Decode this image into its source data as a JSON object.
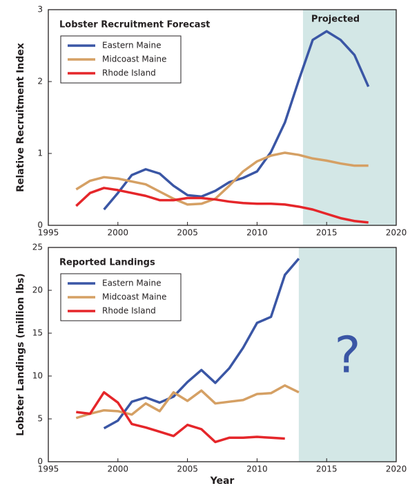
{
  "chart_data": [
    {
      "type": "line",
      "title": "Lobster Recruitment Forecast",
      "ylabel": "Relative Recruitment Index",
      "annotation": "Projected",
      "shaded_xrange": [
        2013.3,
        2020
      ],
      "shade_color": "#d3e7e6",
      "x": [
        1997,
        1998,
        1999,
        2000,
        2001,
        2002,
        2003,
        2004,
        2005,
        2006,
        2007,
        2008,
        2009,
        2010,
        2011,
        2012,
        2013,
        2014,
        2015,
        2016,
        2017,
        2018
      ],
      "series": [
        {
          "name": "Eastern Maine",
          "color": "#3a56a5",
          "values": [
            null,
            null,
            0.22,
            0.45,
            0.7,
            0.78,
            0.72,
            0.55,
            0.42,
            0.4,
            0.48,
            0.6,
            0.66,
            0.75,
            1.02,
            1.43,
            2.02,
            2.58,
            2.7,
            2.58,
            2.37,
            1.93
          ]
        },
        {
          "name": "Midcoast Maine",
          "color": "#d5a064",
          "values": [
            0.5,
            0.62,
            0.67,
            0.65,
            0.61,
            0.57,
            0.47,
            0.37,
            0.29,
            0.3,
            0.37,
            0.55,
            0.75,
            0.89,
            0.97,
            1.01,
            0.98,
            0.93,
            0.9,
            0.86,
            0.83,
            0.83
          ]
        },
        {
          "name": "Rhode Island",
          "color": "#e5262a",
          "values": [
            0.27,
            0.45,
            0.52,
            0.49,
            0.45,
            0.41,
            0.35,
            0.35,
            0.38,
            0.38,
            0.36,
            0.33,
            0.31,
            0.3,
            0.3,
            0.29,
            0.26,
            0.22,
            0.16,
            0.1,
            0.06,
            0.04
          ]
        }
      ],
      "xlim": [
        1995,
        2020
      ],
      "xticks": [
        1995,
        2000,
        2005,
        2010,
        2015,
        2020
      ],
      "ylim": [
        0,
        3
      ],
      "yticks": [
        0,
        1,
        2,
        3
      ]
    },
    {
      "type": "line",
      "title": "Reported Landings",
      "ylabel": "Lobster Landings (million lbs)",
      "xlabel": "Year",
      "annotation": "?",
      "shaded_xrange": [
        2013,
        2020
      ],
      "shade_color": "#d3e7e6",
      "x": [
        1997,
        1998,
        1999,
        2000,
        2001,
        2002,
        2003,
        2004,
        2005,
        2006,
        2007,
        2008,
        2009,
        2010,
        2011,
        2012,
        2013
      ],
      "series": [
        {
          "name": "Eastern Maine",
          "color": "#3a56a5",
          "values": [
            null,
            null,
            3.9,
            4.8,
            7.0,
            7.5,
            6.9,
            7.6,
            9.3,
            10.7,
            9.2,
            10.9,
            13.3,
            16.2,
            16.9,
            21.8,
            23.7
          ]
        },
        {
          "name": "Midcoast Maine",
          "color": "#d5a064",
          "values": [
            5.1,
            5.6,
            6.0,
            5.9,
            5.5,
            6.8,
            5.9,
            8.1,
            7.1,
            8.3,
            6.8,
            7.0,
            7.2,
            7.9,
            8.0,
            8.9,
            8.1
          ]
        },
        {
          "name": "Rhode Island",
          "color": "#e5262a",
          "values": [
            5.8,
            5.6,
            8.1,
            6.9,
            4.4,
            4.0,
            3.5,
            3.0,
            4.3,
            3.8,
            2.3,
            2.8,
            2.8,
            2.9,
            2.8,
            2.7,
            null
          ]
        }
      ],
      "xlim": [
        1995,
        2020
      ],
      "xticks": [
        1995,
        2000,
        2005,
        2010,
        2015,
        2020
      ],
      "ylim": [
        0,
        25
      ],
      "yticks": [
        0,
        5,
        10,
        15,
        20,
        25
      ]
    }
  ]
}
